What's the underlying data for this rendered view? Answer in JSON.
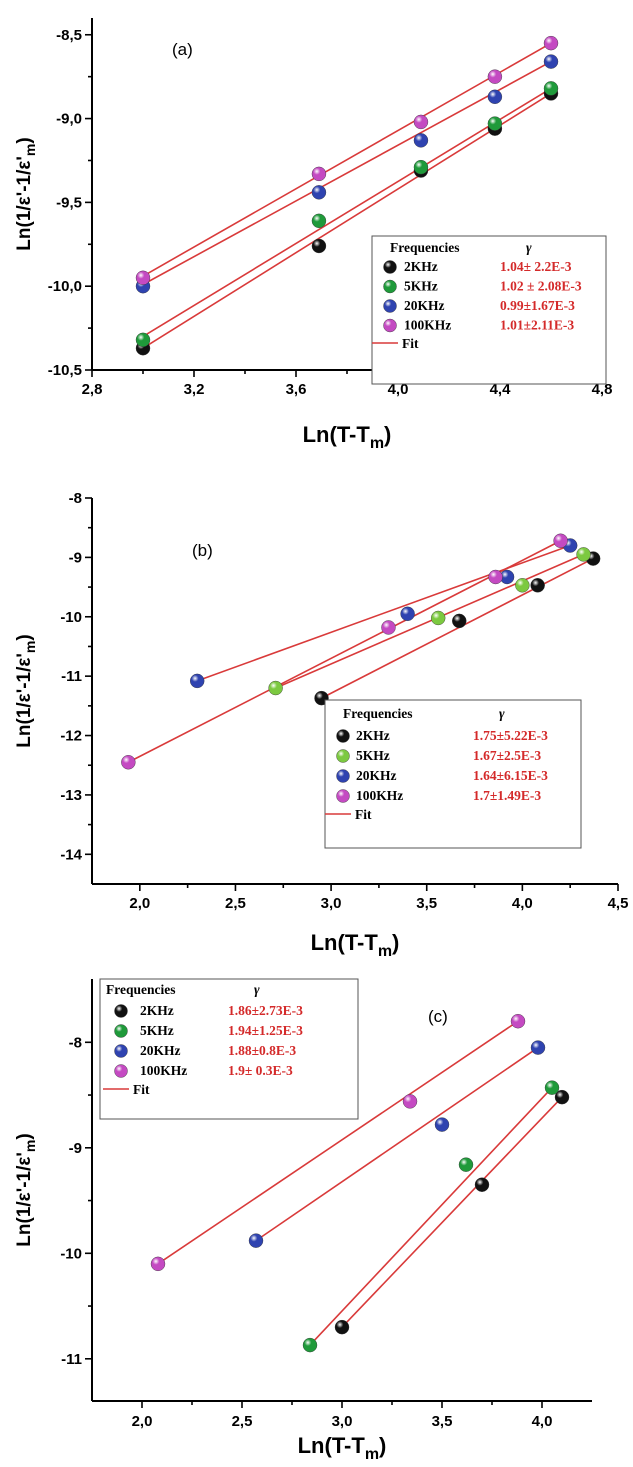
{
  "colors": {
    "fit": "#d93a3a",
    "gamma_text": "#d42a2a",
    "series": {
      "2KHz": "#111111",
      "5KHz": "#1f9a3a",
      "20KHz": "#2f43b0",
      "100KHz": "#c44ac2"
    },
    "series_b": {
      "2KHz": "#111111",
      "5KHz": "#7cc940",
      "20KHz": "#2f43b0",
      "100KHz": "#c44ac2"
    }
  },
  "chart_data": [
    {
      "type": "scatter",
      "panel_label": "(a)",
      "xlabel": "Ln(T-T",
      "xlabel_sub": "m",
      "xlabel_end": ")",
      "ylabel": "Ln(1/ε'-1/ε'",
      "ylabel_sub": "m",
      "ylabel_end": ")",
      "xlim": [
        2.8,
        4.8
      ],
      "ylim": [
        -10.5,
        -8.4
      ],
      "xticks": [
        "2,8",
        "3,2",
        "3,6",
        "4,0",
        "4,4",
        "4,8"
      ],
      "xtick_values": [
        2.8,
        3.2,
        3.6,
        4.0,
        4.4,
        4.8
      ],
      "yticks": [
        "-10,5",
        "-10,0",
        "-9,5",
        "-9,0",
        "-8,5"
      ],
      "ytick_values": [
        -10.5,
        -10.0,
        -9.5,
        -9.0,
        -8.5
      ],
      "legend": {
        "position": "bottom-right",
        "title_left": "Frequencies",
        "title_right": "γ",
        "fit_label": "Fit",
        "entries": [
          {
            "name": "2KHz",
            "gamma": "1.04± 2.2E-3"
          },
          {
            "name": "5KHz",
            "gamma": "1.02 ± 2.08E-3"
          },
          {
            "name": "20KHz",
            "gamma": "0.99±1.67E-3"
          },
          {
            "name": "100KHz",
            "gamma": "1.01±2.11E-3"
          }
        ]
      },
      "series": [
        {
          "name": "2KHz",
          "x": [
            3.0,
            3.69,
            4.09,
            4.38,
            4.6
          ],
          "y": [
            -10.37,
            -9.76,
            -9.31,
            -9.06,
            -8.85
          ]
        },
        {
          "name": "5KHz",
          "x": [
            3.0,
            3.69,
            4.09,
            4.38,
            4.6
          ],
          "y": [
            -10.32,
            -9.61,
            -9.29,
            -9.03,
            -8.82
          ]
        },
        {
          "name": "20KHz",
          "x": [
            3.0,
            3.69,
            4.09,
            4.38,
            4.6
          ],
          "y": [
            -10.0,
            -9.44,
            -9.13,
            -8.87,
            -8.66
          ]
        },
        {
          "name": "100KHz",
          "x": [
            3.0,
            3.69,
            4.09,
            4.38,
            4.6
          ],
          "y": [
            -9.95,
            -9.33,
            -9.02,
            -8.75,
            -8.55
          ]
        }
      ],
      "fits": [
        {
          "series": "2KHz",
          "x": [
            3.0,
            4.6
          ],
          "y": [
            -10.37,
            -8.85
          ]
        },
        {
          "series": "5KHz",
          "x": [
            3.0,
            4.6
          ],
          "y": [
            -10.3,
            -8.82
          ]
        },
        {
          "series": "20KHz",
          "x": [
            3.0,
            4.6
          ],
          "y": [
            -9.99,
            -8.66
          ]
        },
        {
          "series": "100KHz",
          "x": [
            3.0,
            4.6
          ],
          "y": [
            -9.94,
            -8.55
          ]
        }
      ]
    },
    {
      "type": "scatter",
      "panel_label": "(b)",
      "xlabel": "Ln(T-T",
      "xlabel_sub": "m",
      "xlabel_end": ")",
      "ylabel": "Ln(1/ε'-1/ε'",
      "ylabel_sub": "m",
      "ylabel_end": ")",
      "xlim": [
        1.75,
        4.5
      ],
      "ylim": [
        -14.5,
        -8.0
      ],
      "xticks": [
        "2,0",
        "2,5",
        "3,0",
        "3,5",
        "4,0",
        "4,5"
      ],
      "xtick_values": [
        2.0,
        2.5,
        3.0,
        3.5,
        4.0,
        4.5
      ],
      "yticks": [
        "-14",
        "-13",
        "-12",
        "-11",
        "-10",
        "-9",
        "-8"
      ],
      "ytick_values": [
        -14,
        -13,
        -12,
        -11,
        -10,
        -9,
        -8
      ],
      "legend": {
        "position": "bottom-right",
        "title_left": "Frequencies",
        "title_right": "γ",
        "fit_label": "Fit",
        "entries": [
          {
            "name": "2KHz",
            "gamma": "1.75±5.22E-3"
          },
          {
            "name": "5KHz",
            "gamma": "1.67±2.5E-3"
          },
          {
            "name": "20KHz",
            "gamma": "1.64±6.15E-3"
          },
          {
            "name": "100KHz",
            "gamma": "1.7±1.49E-3"
          }
        ]
      },
      "series": [
        {
          "name": "2KHz",
          "x": [
            2.95,
            3.67,
            4.08,
            4.37
          ],
          "y": [
            -11.37,
            -10.07,
            -9.47,
            -9.02
          ]
        },
        {
          "name": "5KHz",
          "x": [
            2.71,
            3.56,
            4.0,
            4.32
          ],
          "y": [
            -11.2,
            -10.02,
            -9.47,
            -8.95
          ]
        },
        {
          "name": "20KHz",
          "x": [
            2.3,
            3.4,
            3.92,
            4.25
          ],
          "y": [
            -11.08,
            -9.95,
            -9.33,
            -8.8
          ]
        },
        {
          "name": "100KHz",
          "x": [
            1.94,
            3.3,
            3.86,
            4.2
          ],
          "y": [
            -12.45,
            -10.18,
            -9.33,
            -8.72
          ]
        }
      ],
      "fits": [
        {
          "series": "2KHz",
          "x": [
            2.95,
            4.37
          ],
          "y": [
            -11.37,
            -9.02
          ]
        },
        {
          "series": "5KHz",
          "x": [
            2.71,
            4.32
          ],
          "y": [
            -11.2,
            -8.95
          ]
        },
        {
          "series": "20KHz",
          "x": [
            2.3,
            4.25
          ],
          "y": [
            -11.08,
            -8.8
          ]
        },
        {
          "series": "100KHz",
          "x": [
            1.94,
            4.2
          ],
          "y": [
            -12.45,
            -8.72
          ]
        }
      ]
    },
    {
      "type": "scatter",
      "panel_label": "(c)",
      "xlabel": "Ln(T-T",
      "xlabel_sub": "m",
      "xlabel_end": ")",
      "ylabel": "Ln(1/ε'-1/ε'",
      "ylabel_sub": "m",
      "ylabel_end": ")",
      "xlim": [
        1.75,
        4.25
      ],
      "ylim": [
        -11.4,
        -7.4
      ],
      "xticks": [
        "2,0",
        "2,5",
        "3,0",
        "3,5",
        "4,0"
      ],
      "xtick_values": [
        2.0,
        2.5,
        3.0,
        3.5,
        4.0
      ],
      "yticks": [
        "-11",
        "-10",
        "-9",
        "-8"
      ],
      "ytick_values": [
        -11,
        -10,
        -9,
        -8
      ],
      "legend": {
        "position": "top-left",
        "title_left": "Frequencies",
        "title_right": "γ",
        "fit_label": "Fit",
        "entries": [
          {
            "name": "2KHz",
            "gamma": "1.86±2.73E-3"
          },
          {
            "name": "5KHz",
            "gamma": "1.94±1.25E-3"
          },
          {
            "name": "20KHz",
            "gamma": "1.88±0.8E-3"
          },
          {
            "name": "100KHz",
            "gamma": "1.9± 0.3E-3"
          }
        ]
      },
      "series": [
        {
          "name": "2KHz",
          "x": [
            3.0,
            3.7,
            4.1
          ],
          "y": [
            -10.7,
            -9.35,
            -8.52
          ]
        },
        {
          "name": "5KHz",
          "x": [
            2.84,
            3.62,
            4.05
          ],
          "y": [
            -10.87,
            -9.16,
            -8.43
          ]
        },
        {
          "name": "20KHz",
          "x": [
            2.57,
            3.5,
            3.98
          ],
          "y": [
            -9.88,
            -8.78,
            -8.05
          ]
        },
        {
          "name": "100KHz",
          "x": [
            2.08,
            3.34,
            3.88
          ],
          "y": [
            -10.1,
            -8.56,
            -7.8
          ]
        }
      ],
      "fits": [
        {
          "series": "2KHz",
          "x": [
            3.0,
            4.1
          ],
          "y": [
            -10.7,
            -8.52
          ]
        },
        {
          "series": "5KHz",
          "x": [
            2.84,
            4.05
          ],
          "y": [
            -10.87,
            -8.43
          ]
        },
        {
          "series": "20KHz",
          "x": [
            2.57,
            3.98
          ],
          "y": [
            -9.88,
            -8.05
          ]
        },
        {
          "series": "100KHz",
          "x": [
            2.08,
            3.88
          ],
          "y": [
            -10.1,
            -7.8
          ]
        }
      ]
    }
  ]
}
